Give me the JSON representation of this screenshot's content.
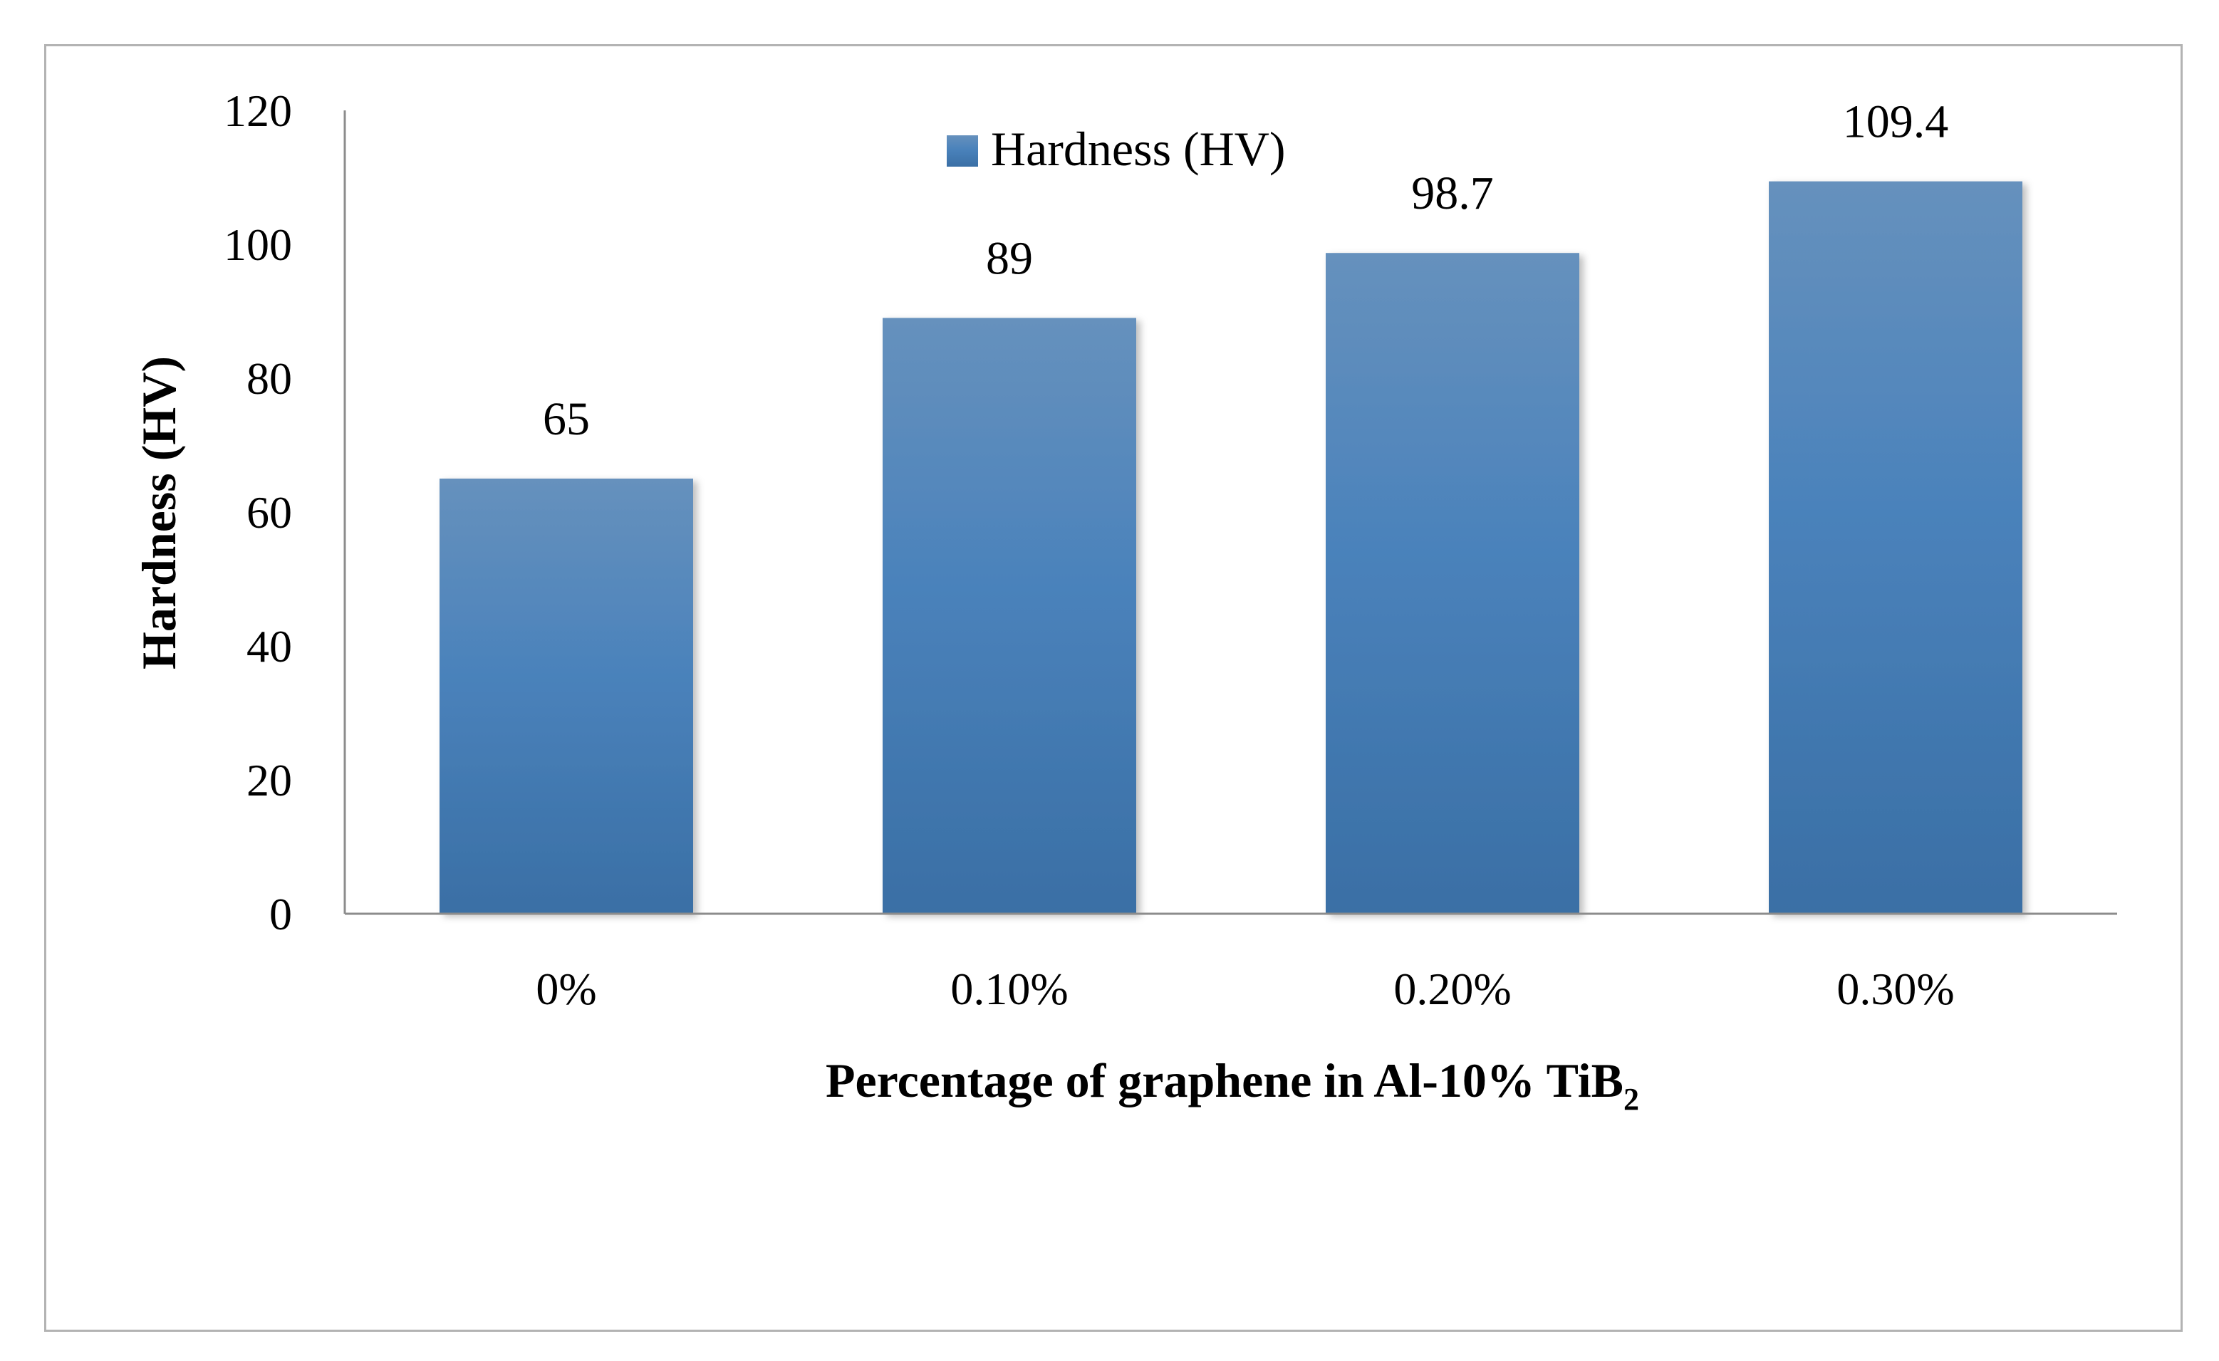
{
  "chart_data": {
    "type": "bar",
    "categories": [
      "0%",
      "0.10%",
      "0.20%",
      "0.30%"
    ],
    "series": [
      {
        "name": "Hardness (HV)",
        "values": [
          65,
          89,
          98.7,
          109.4
        ],
        "color": "#4a7fb5"
      }
    ],
    "data_labels": [
      "65",
      "89",
      "98.7",
      "109.4"
    ],
    "y_ticks": [
      "0",
      "20",
      "40",
      "60",
      "80",
      "100",
      "120"
    ],
    "ylim": [
      0,
      120
    ],
    "ylabel": "Hardness (HV)",
    "xlabel": {
      "main": "Percentage of graphene in Al-10% TiB",
      "subscript": "2"
    },
    "legend": {
      "label": "Hardness (HV)",
      "placement": "top-center"
    },
    "grid": false
  }
}
